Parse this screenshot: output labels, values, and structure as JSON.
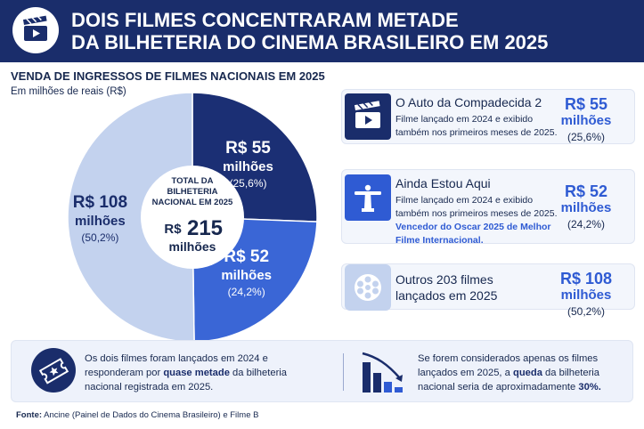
{
  "header": {
    "title_line1": "DOIS FILMES CONCENTRARAM METADE",
    "title_line2": "DA BILHETERIA DO CINEMA BRASILEIRO EM 2025",
    "icon": "clapperboard-icon"
  },
  "chart_data": {
    "type": "pie",
    "title": "VENDA DE INGRESSOS DE FILMES NACIONAIS EM 2025",
    "subtitle": "Em milhões de reais (R$)",
    "unit": "milhões de reais (R$)",
    "slices": [
      {
        "value": 55,
        "percent": 25.6,
        "color": "#1b2f74",
        "label_amount": "R$ 55",
        "label_unit": "milhões",
        "label_pct": "(25,6%)"
      },
      {
        "value": 52,
        "percent": 24.2,
        "color": "#3a66d6",
        "label_amount": "R$ 52",
        "label_unit": "milhões",
        "label_pct": "(24,2%)"
      },
      {
        "value": 108,
        "percent": 50.2,
        "color": "#c3d2ee",
        "label_amount": "R$ 108",
        "label_unit": "milhões",
        "label_pct": "(50,2%)"
      }
    ],
    "center": {
      "line1": "TOTAL DA",
      "line2": "BILHETERIA",
      "line3": "NACIONAL EM 2025",
      "currency": "R$",
      "total": "215",
      "unit": "milhões"
    }
  },
  "cards": [
    {
      "icon": "clapperboard-icon",
      "name": "O Auto da Compadecida 2",
      "desc": "Filme lançado em 2024 e exibido também nos primeiros meses de 2025.",
      "note": "",
      "amount": "R$ 55",
      "unit": "milhões",
      "pct": "(25,6%)"
    },
    {
      "icon": "christ-statue-icon",
      "name": "Ainda Estou Aqui",
      "desc": "Filme lançado em 2024 e exibido também nos primeiros meses de 2025.",
      "note": "Vencedor do Oscar 2025 de Melhor Filme Internacional.",
      "amount": "R$ 52",
      "unit": "milhões",
      "pct": "(24,2%)"
    },
    {
      "icon": "film-reel-icon",
      "name": "Outros 203 filmes lançados em 2025",
      "desc": "",
      "note": "",
      "amount": "R$ 108",
      "unit": "milhões",
      "pct": "(50,2%)"
    }
  ],
  "bottom": {
    "left_icon": "ticket-icon",
    "left_pre": "Os dois filmes foram lançados em 2024 e responderam por ",
    "left_bold": "quase metade",
    "left_post": " da bilheteria nacional registrada em 2025.",
    "right_icon": "declining-bars-icon",
    "right_pre": "Se forem considerados apenas os filmes lançados em 2025, a ",
    "right_bold1": "queda",
    "right_mid": " da bilheteria nacional seria de aproximadamente ",
    "right_bold2": "30%."
  },
  "source": {
    "label": "Fonte:",
    "text": " Ancine (Painel de Dados do Cinema Brasileiro) e Filme B"
  },
  "colors": {
    "navy": "#1a2d6b",
    "accent_blue": "#2f5bd3",
    "light_blue": "#c3d2ee"
  }
}
